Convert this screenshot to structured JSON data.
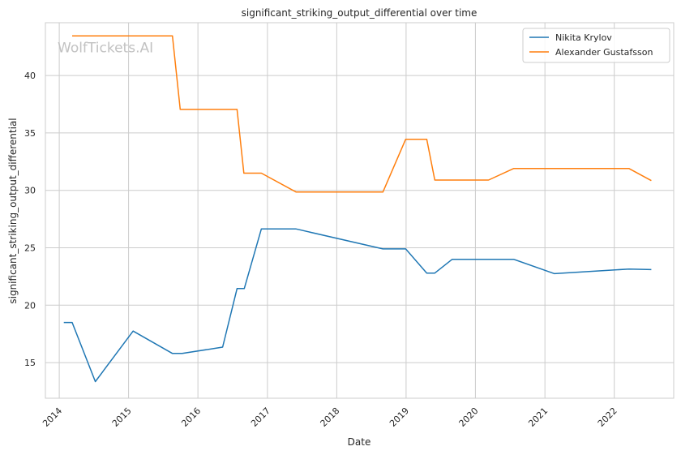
{
  "chart_data": {
    "type": "line",
    "title": "significant_striking_output_differential over time",
    "xlabel": "Date",
    "ylabel": "significant_striking_output_differential",
    "watermark": "WolfTickets.AI",
    "x_ticks": [
      "2014",
      "2015",
      "2016",
      "2017",
      "2018",
      "2019",
      "2020",
      "2021",
      "2022"
    ],
    "y_ticks": [
      15,
      20,
      25,
      30,
      35,
      40
    ],
    "xlim": [
      "2013-10-20",
      "2022-11-10"
    ],
    "ylim": [
      11.9,
      44.6
    ],
    "grid": true,
    "legend_position": "top-right",
    "series": [
      {
        "name": "Nikita Krylov",
        "color": "#1f77b4",
        "points": [
          [
            "2014-01-25",
            18.5
          ],
          [
            "2014-03-10",
            18.5
          ],
          [
            "2014-07-10",
            13.35
          ],
          [
            "2015-01-25",
            17.75
          ],
          [
            "2015-08-20",
            15.8
          ],
          [
            "2015-10-10",
            15.8
          ],
          [
            "2016-05-10",
            16.35
          ],
          [
            "2016-07-25",
            21.45
          ],
          [
            "2016-09-01",
            21.45
          ],
          [
            "2016-11-30",
            26.65
          ],
          [
            "2017-05-30",
            26.65
          ],
          [
            "2018-09-01",
            24.9
          ],
          [
            "2018-12-30",
            24.9
          ],
          [
            "2019-04-20",
            22.8
          ],
          [
            "2019-06-01",
            22.8
          ],
          [
            "2019-09-01",
            24.0
          ],
          [
            "2020-07-20",
            24.0
          ],
          [
            "2021-02-20",
            22.75
          ],
          [
            "2022-03-20",
            23.15
          ],
          [
            "2022-07-15",
            23.1
          ]
        ]
      },
      {
        "name": "Alexander Gustafsson",
        "color": "#ff7f0e",
        "points": [
          [
            "2014-03-10",
            43.45
          ],
          [
            "2015-08-20",
            43.45
          ],
          [
            "2015-09-30",
            37.05
          ],
          [
            "2016-07-25",
            37.05
          ],
          [
            "2016-08-30",
            31.5
          ],
          [
            "2016-11-30",
            31.5
          ],
          [
            "2017-06-01",
            29.85
          ],
          [
            "2018-09-01",
            29.85
          ],
          [
            "2018-12-30",
            34.45
          ],
          [
            "2019-04-20",
            34.45
          ],
          [
            "2019-06-01",
            30.9
          ],
          [
            "2020-03-10",
            30.9
          ],
          [
            "2020-07-20",
            31.9
          ],
          [
            "2022-03-20",
            31.9
          ],
          [
            "2022-07-15",
            30.85
          ]
        ]
      }
    ]
  }
}
